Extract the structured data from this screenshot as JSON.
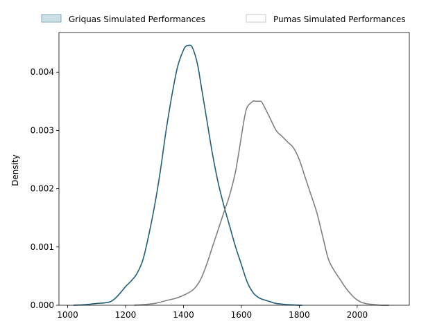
{
  "chart_data": {
    "type": "line",
    "title": "",
    "xlabel": "",
    "ylabel": "Density",
    "xlim": [
      970,
      2180
    ],
    "ylim": [
      0,
      0.00468
    ],
    "x_ticks": [
      1000,
      1200,
      1400,
      1600,
      1800,
      2000
    ],
    "x_tick_labels": [
      "1000",
      "1200",
      "1400",
      "1600",
      "1800",
      "2000"
    ],
    "y_ticks": [
      0,
      0.001,
      0.002,
      0.003,
      0.004
    ],
    "y_tick_labels": [
      "0.000",
      "0.001",
      "0.002",
      "0.003",
      "0.004"
    ],
    "grid": false,
    "legend_position": "top-center, above plot",
    "series": [
      {
        "name": "Griquas Simulated Performances",
        "color": "#1f5f7a",
        "legend_face": "#a9c9d6",
        "legend_edge": "#7fa8ba",
        "x": [
          1020,
          1060,
          1100,
          1140,
          1160,
          1180,
          1200,
          1220,
          1240,
          1260,
          1280,
          1300,
          1320,
          1340,
          1360,
          1380,
          1400,
          1410,
          1420,
          1425,
          1430,
          1440,
          1450,
          1460,
          1480,
          1500,
          1520,
          1540,
          1560,
          1580,
          1600,
          1620,
          1640,
          1660,
          1680,
          1700,
          1720,
          1740,
          1760,
          1780,
          1800,
          1810
        ],
        "y": [
          0.0,
          1e-05,
          3e-05,
          5e-05,
          0.0001,
          0.0002,
          0.00032,
          0.00042,
          0.00055,
          0.00078,
          0.0012,
          0.0017,
          0.0023,
          0.003,
          0.0036,
          0.0041,
          0.00438,
          0.00445,
          0.00446,
          0.00446,
          0.00443,
          0.0043,
          0.0041,
          0.0038,
          0.0032,
          0.0026,
          0.0021,
          0.0017,
          0.00135,
          0.001,
          0.0007,
          0.0004,
          0.00022,
          0.00013,
          9e-05,
          6e-05,
          3e-05,
          2e-05,
          1e-05,
          5e-06,
          0.0,
          0.0
        ]
      },
      {
        "name": "Pumas Simulated Performances",
        "color": "#808080",
        "legend_face": "#ffffff",
        "legend_edge": "#c8c8c8",
        "x": [
          1230,
          1260,
          1300,
          1340,
          1380,
          1420,
          1440,
          1460,
          1480,
          1500,
          1520,
          1540,
          1560,
          1580,
          1600,
          1610,
          1620,
          1640,
          1650,
          1660,
          1665,
          1670,
          1680,
          1700,
          1720,
          1740,
          1760,
          1780,
          1800,
          1820,
          1840,
          1860,
          1880,
          1900,
          1920,
          1940,
          1960,
          1980,
          2000,
          2020,
          2040,
          2060,
          2080,
          2110
        ],
        "y": [
          0.0,
          1e-05,
          3e-05,
          8e-05,
          0.00013,
          0.00022,
          0.0003,
          0.00045,
          0.0007,
          0.001,
          0.0013,
          0.0016,
          0.0019,
          0.0023,
          0.0029,
          0.0032,
          0.0034,
          0.0035,
          0.0035,
          0.0035,
          0.0035,
          0.00349,
          0.0034,
          0.0032,
          0.003,
          0.0029,
          0.0028,
          0.0027,
          0.0025,
          0.0022,
          0.0019,
          0.0016,
          0.0012,
          0.0008,
          0.0006,
          0.00045,
          0.0003,
          0.00018,
          9e-05,
          4e-05,
          2e-05,
          1e-05,
          0.0,
          0.0
        ]
      }
    ]
  }
}
